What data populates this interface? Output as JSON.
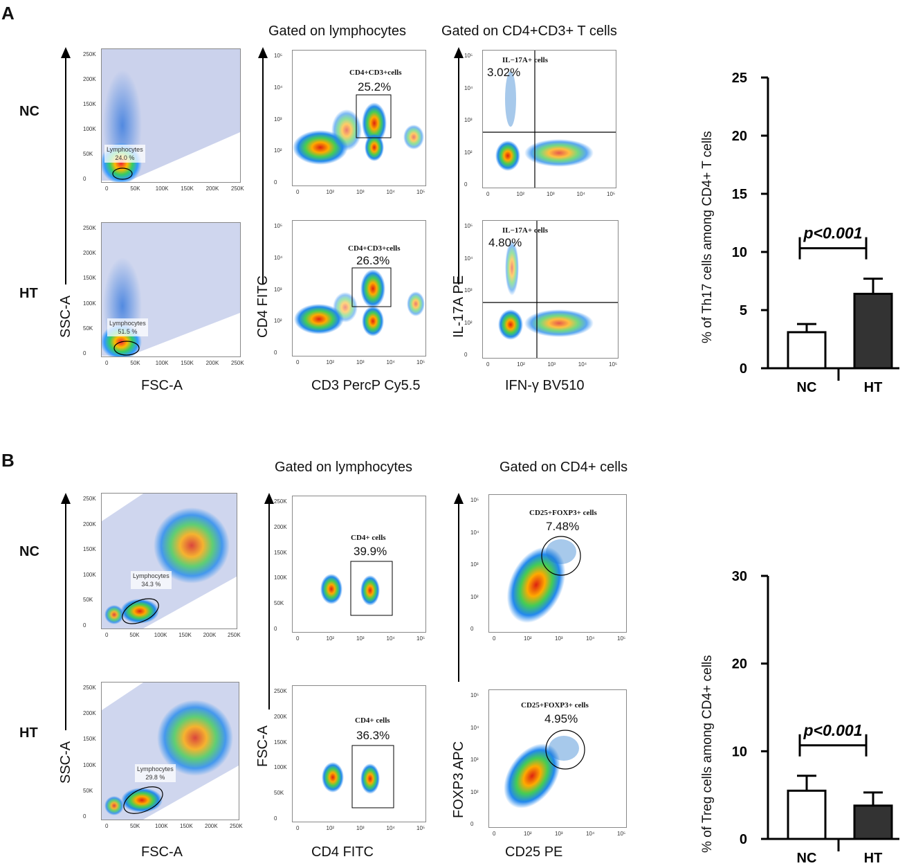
{
  "panelA": {
    "letter": "A",
    "rows": [
      "NC",
      "HT"
    ],
    "gate_titles": [
      "Gated on lymphocytes",
      "Gated on CD4+CD3+ T cells"
    ],
    "col1": {
      "xlabel": "FSC-A",
      "ylabel": "SSC-A",
      "gate_name": "Lymphocytes",
      "values": [
        "24.0 %",
        "51.5 %"
      ]
    },
    "col2": {
      "xlabel": "CD3 PercP Cy5.5",
      "ylabel": "CD4 FITC",
      "gate_name": "CD4+CD3+cells",
      "values": [
        "25.2%",
        "26.3%"
      ]
    },
    "col3": {
      "xlabel": "IFN-γ  BV510",
      "ylabel": "IL-17A PE",
      "gate_name": "IL−17A+ cells",
      "values": [
        "3.02%",
        "4.80%"
      ]
    },
    "lin_ticks": [
      "0",
      "50K",
      "100K",
      "150K",
      "200K",
      "250K"
    ],
    "log_ticks": [
      "0",
      "10²",
      "10³",
      "10⁴",
      "10⁵"
    ]
  },
  "panelB": {
    "letter": "B",
    "rows": [
      "NC",
      "HT"
    ],
    "gate_titles": [
      "Gated on lymphocytes",
      "Gated on CD4+  cells"
    ],
    "col1": {
      "xlabel": "FSC-A",
      "ylabel": "SSC-A",
      "gate_name": "Lymphocytes",
      "values": [
        "34.3 %",
        "29.8 %"
      ]
    },
    "col2": {
      "xlabel": "CD4 FITC",
      "ylabel": "FSC-A",
      "gate_name": "CD4+ cells",
      "values": [
        "39.9%",
        "36.3%"
      ]
    },
    "col3": {
      "xlabel": "CD25 PE",
      "ylabel": "FOXP3 APC",
      "gate_name": "CD25+FOXP3+ cells",
      "values": [
        "7.48%",
        "4.95%"
      ]
    }
  },
  "chart_data": [
    {
      "type": "bar",
      "title": "",
      "categories": [
        "NC",
        "HT"
      ],
      "values": [
        3.1,
        6.4
      ],
      "errors": [
        0.7,
        1.3
      ],
      "bar_colors": [
        "#ffffff",
        "#333333"
      ],
      "ylabel": "% of Th17 cells among CD4+ T cells",
      "ylim": [
        0,
        25
      ],
      "yticks": [
        "0",
        "5",
        "10",
        "15",
        "20",
        "25"
      ],
      "annotation": "p<0.001"
    },
    {
      "type": "bar",
      "title": "",
      "categories": [
        "NC",
        "HT"
      ],
      "values": [
        5.5,
        3.8
      ],
      "errors": [
        1.7,
        1.5
      ],
      "bar_colors": [
        "#ffffff",
        "#333333"
      ],
      "ylabel": "% of Treg cells among CD4+  cells",
      "ylim": [
        0,
        30
      ],
      "yticks": [
        "0",
        "10",
        "20",
        "30"
      ],
      "annotation": "p<0.001"
    }
  ]
}
